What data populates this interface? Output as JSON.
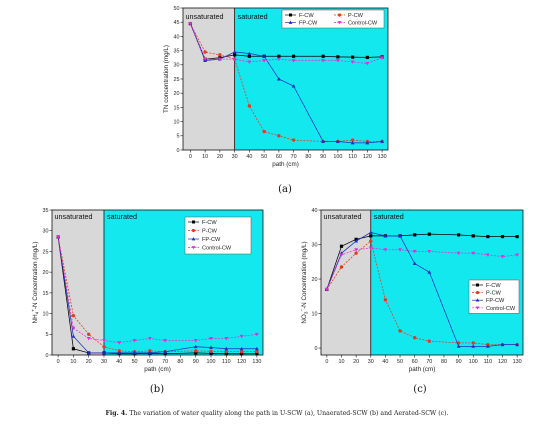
{
  "caption": {
    "label": "Fig. 4.",
    "text": "The variation of water quality along the path in U-SCW (a), Unaerated-SCW (b) and Aerated-SCW (c)."
  },
  "colors": {
    "unsaturated_fill": "#d8d8d8",
    "saturated_fill": "#14e8ef",
    "F-CW": "#000000",
    "P-CW": "#e23b1c",
    "FP-CW": "#1c2fbf",
    "Control-CW": "#e52bd8"
  },
  "chart_data": [
    {
      "id": "a",
      "panel_label": "(a)",
      "type": "line",
      "ylabel": "TN concentration (mg/L)",
      "xlabel": "path (cm)",
      "xlim": [
        -5,
        134
      ],
      "ylim": [
        0,
        50
      ],
      "yticks": [
        0,
        5,
        10,
        15,
        20,
        25,
        30,
        35,
        40,
        45,
        50
      ],
      "xticks": [
        0,
        10,
        20,
        30,
        40,
        50,
        60,
        70,
        80,
        90,
        100,
        110,
        120,
        130
      ],
      "regions": [
        {
          "label": "unsaturated",
          "x0": -5,
          "x1": 30,
          "kind": "unsaturated"
        },
        {
          "label": "saturated",
          "x0": 30,
          "x1": 134,
          "kind": "saturated"
        }
      ],
      "legend": {
        "position": "top-right",
        "layout": "two-column"
      },
      "x": [
        0,
        10,
        20,
        30,
        40,
        50,
        60,
        70,
        90,
        100,
        110,
        120,
        130
      ],
      "series": [
        {
          "name": "F-CW",
          "marker": "square",
          "values": [
            44.5,
            32.0,
            32.5,
            33.5,
            33.0,
            33.0,
            33.0,
            33.0,
            33.0,
            32.8,
            32.7,
            32.6,
            32.8
          ]
        },
        {
          "name": "P-CW",
          "marker": "circle",
          "values": [
            44.5,
            34.5,
            33.5,
            32.0,
            15.5,
            6.5,
            5.0,
            3.5,
            3.0,
            3.0,
            3.5,
            3.0,
            3.0
          ]
        },
        {
          "name": "FP-CW",
          "marker": "triangle",
          "values": [
            44.5,
            31.5,
            32.0,
            34.5,
            34.0,
            33.0,
            25.0,
            22.5,
            3.0,
            3.0,
            2.5,
            2.5,
            3.0
          ]
        },
        {
          "name": "Control-CW",
          "marker": "triangle-down",
          "values": [
            44.5,
            32.0,
            32.0,
            32.0,
            31.0,
            31.5,
            32.0,
            31.5,
            31.5,
            31.5,
            31.0,
            30.5,
            32.5
          ]
        }
      ]
    },
    {
      "id": "b",
      "panel_label": "(b)",
      "type": "line",
      "ylabel": "NH4+-N Concentration (mg/L)",
      "xlabel": "path (cm)",
      "xlim": [
        -4,
        134
      ],
      "ylim": [
        0,
        35
      ],
      "yticks": [
        0,
        5,
        10,
        15,
        20,
        25,
        30,
        35
      ],
      "xticks": [
        0,
        10,
        20,
        30,
        40,
        50,
        60,
        70,
        80,
        90,
        100,
        110,
        120,
        130
      ],
      "regions": [
        {
          "label": "unsaturated",
          "x0": -4,
          "x1": 30,
          "kind": "unsaturated"
        },
        {
          "label": "saturated",
          "x0": 30,
          "x1": 134,
          "kind": "saturated"
        }
      ],
      "legend": {
        "position": "top-right",
        "layout": "one-column"
      },
      "x": [
        0,
        10,
        20,
        30,
        40,
        50,
        60,
        70,
        90,
        100,
        110,
        120,
        130
      ],
      "series": [
        {
          "name": "F-CW",
          "marker": "square",
          "values": [
            28.5,
            1.5,
            0.5,
            0.5,
            0.3,
            0.3,
            0.4,
            0.3,
            0.5,
            0.4,
            0.3,
            0.3,
            0.3
          ]
        },
        {
          "name": "P-CW",
          "marker": "circle",
          "values": [
            28.5,
            9.5,
            5.0,
            2.0,
            1.0,
            0.8,
            1.0,
            0.8,
            1.0,
            0.9,
            0.8,
            0.8,
            0.8
          ]
        },
        {
          "name": "FP-CW",
          "marker": "triangle",
          "values": [
            28.5,
            4.5,
            0.5,
            0.5,
            0.5,
            0.5,
            0.5,
            0.8,
            2.0,
            1.8,
            1.5,
            1.5,
            1.5
          ]
        },
        {
          "name": "Control-CW",
          "marker": "triangle-down",
          "values": [
            28.5,
            6.5,
            4.0,
            3.5,
            3.0,
            3.5,
            4.0,
            3.5,
            3.5,
            4.0,
            4.0,
            4.5,
            5.0
          ]
        }
      ]
    },
    {
      "id": "c",
      "panel_label": "(c)",
      "type": "line",
      "ylabel": "NO3−-N Concentration (mg/L)",
      "xlabel": "path (cm)",
      "xlim": [
        -4,
        134
      ],
      "ylim": [
        -2,
        40
      ],
      "yticks": [
        0,
        10,
        20,
        30,
        40
      ],
      "xticks": [
        0,
        10,
        20,
        30,
        40,
        50,
        60,
        70,
        80,
        90,
        100,
        110,
        120,
        130
      ],
      "regions": [
        {
          "label": "unsaturated",
          "x0": -4,
          "x1": 30,
          "kind": "unsaturated"
        },
        {
          "label": "saturated",
          "x0": 30,
          "x1": 134,
          "kind": "saturated"
        }
      ],
      "legend": {
        "position": "right",
        "layout": "one-column"
      },
      "x": [
        0,
        10,
        20,
        30,
        40,
        50,
        60,
        70,
        90,
        100,
        110,
        120,
        130
      ],
      "series": [
        {
          "name": "F-CW",
          "marker": "square",
          "values": [
            17.0,
            29.5,
            31.5,
            32.5,
            32.5,
            32.5,
            32.8,
            33.0,
            32.8,
            32.5,
            32.3,
            32.3,
            32.3
          ]
        },
        {
          "name": "P-CW",
          "marker": "circle",
          "values": [
            17.0,
            23.5,
            27.5,
            31.0,
            14.0,
            5.0,
            3.0,
            2.0,
            1.5,
            1.5,
            1.0,
            1.0,
            1.0
          ]
        },
        {
          "name": "FP-CW",
          "marker": "triangle",
          "values": [
            17.0,
            27.5,
            31.0,
            33.5,
            32.5,
            32.5,
            24.5,
            22.0,
            0.5,
            0.5,
            0.5,
            1.0,
            1.0
          ]
        },
        {
          "name": "Control-CW",
          "marker": "triangle-down",
          "values": [
            17.0,
            27.0,
            28.5,
            29.0,
            28.5,
            28.5,
            28.0,
            28.0,
            27.5,
            27.5,
            27.0,
            26.5,
            27.0
          ]
        }
      ]
    }
  ]
}
